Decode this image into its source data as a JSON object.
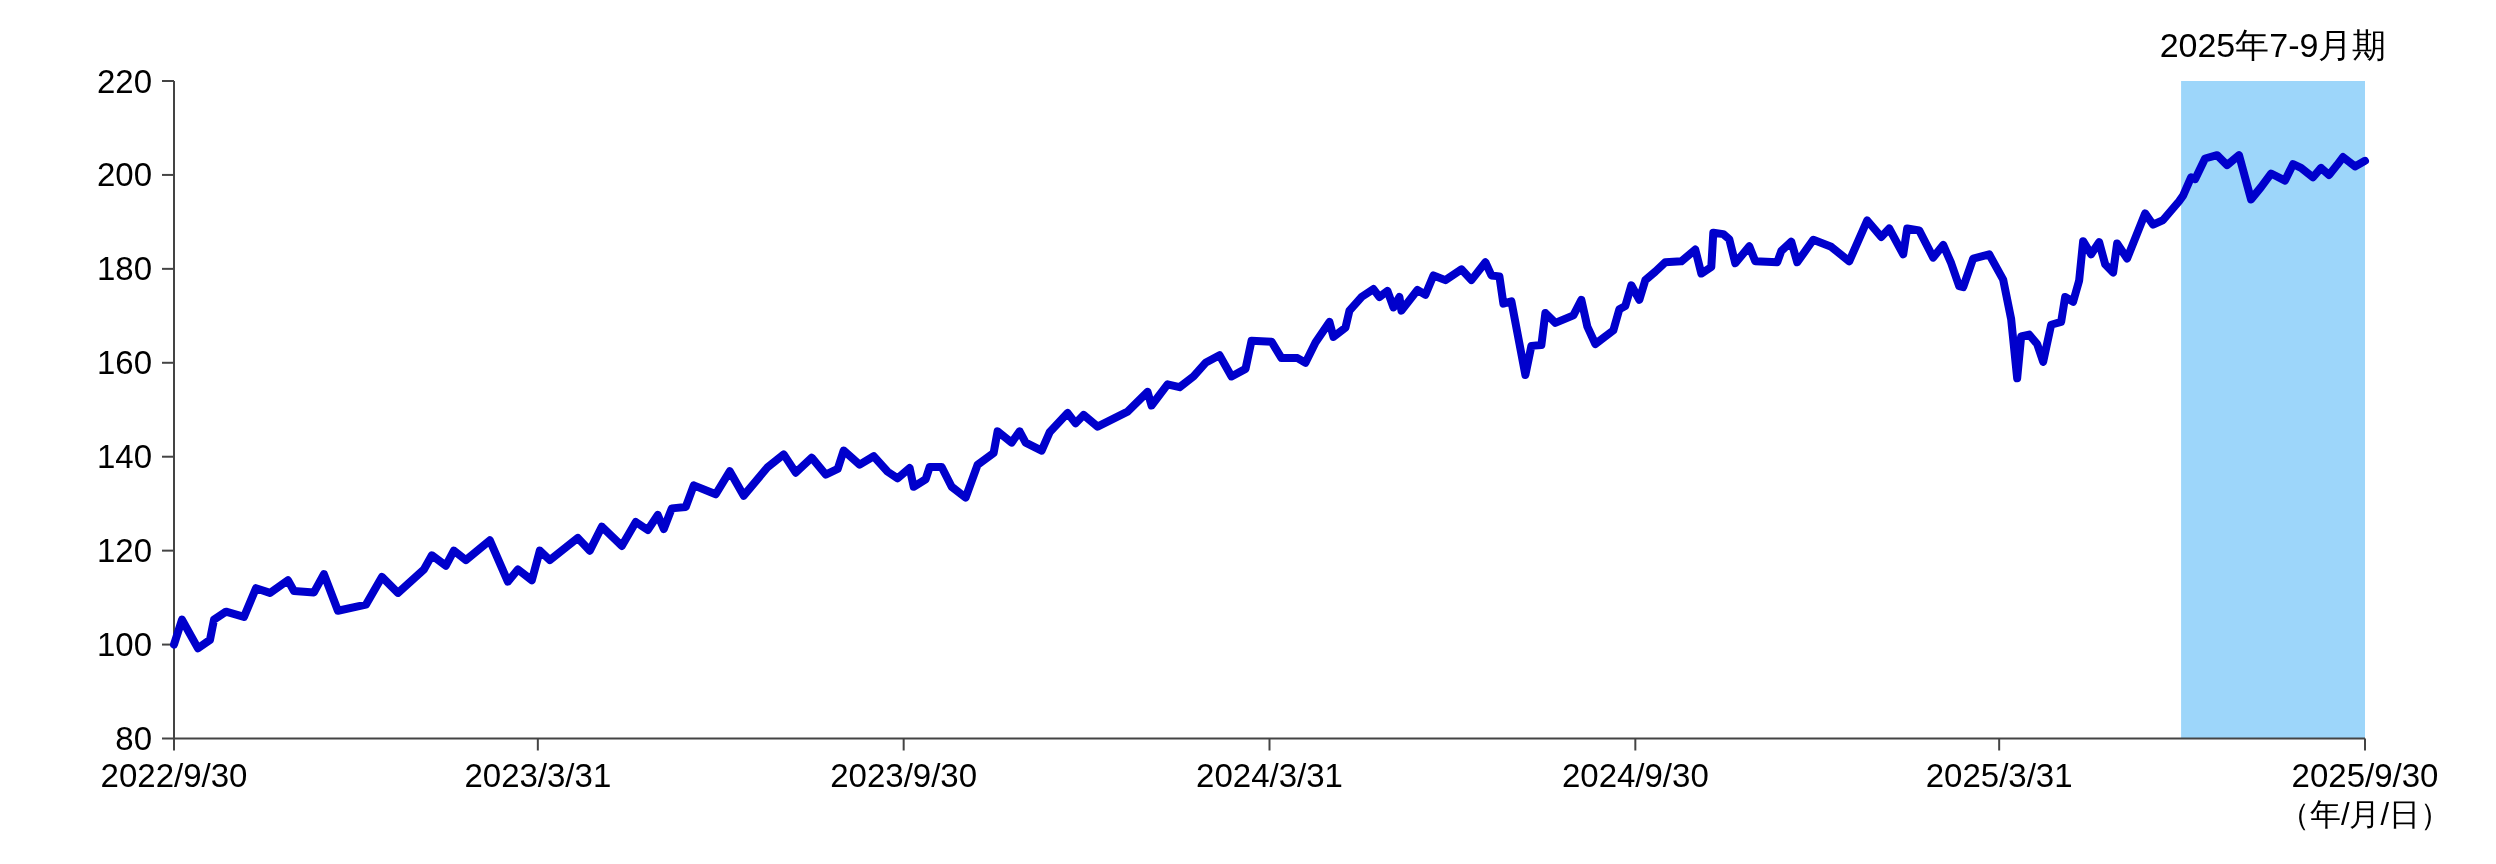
{
  "chart_data": {
    "type": "line",
    "xlabel": "（年/月/日）",
    "x": [
      "2022-09-30",
      "2022-10-04",
      "2022-10-12",
      "2022-10-18",
      "2022-10-20",
      "2022-10-26",
      "2022-11-04",
      "2022-11-10",
      "2022-11-17",
      "2022-11-26",
      "2022-11-29",
      "2022-12-09",
      "2022-12-14",
      "2022-12-21",
      "2023-01-04",
      "2023-01-12",
      "2023-01-20",
      "2023-02-02",
      "2023-02-06",
      "2023-02-13",
      "2023-02-17",
      "2023-02-23",
      "2023-03-07",
      "2023-03-16",
      "2023-03-21",
      "2023-03-28",
      "2023-04-01",
      "2023-04-06",
      "2023-04-20",
      "2023-04-26",
      "2023-05-02",
      "2023-05-12",
      "2023-05-19",
      "2023-05-25",
      "2023-05-30",
      "2023-06-02",
      "2023-06-06",
      "2023-06-13",
      "2023-06-17",
      "2023-06-28",
      "2023-07-05",
      "2023-07-12",
      "2023-07-24",
      "2023-08-01",
      "2023-08-07",
      "2023-08-15",
      "2023-08-22",
      "2023-08-28",
      "2023-08-31",
      "2023-09-08",
      "2023-09-15",
      "2023-09-22",
      "2023-09-27",
      "2023-10-03",
      "2023-10-05",
      "2023-10-11",
      "2023-10-13",
      "2023-10-19",
      "2023-10-24",
      "2023-10-31",
      "2023-11-06",
      "2023-11-14",
      "2023-11-16",
      "2023-11-23",
      "2023-11-27",
      "2023-11-30",
      "2023-12-08",
      "2023-12-12",
      "2023-12-21",
      "2023-12-25",
      "2023-12-29",
      "2024-01-05",
      "2024-01-20",
      "2024-01-30",
      "2024-02-01",
      "2024-02-09",
      "2024-02-15",
      "2024-02-22",
      "2024-02-28",
      "2024-03-06",
      "2024-03-12",
      "2024-03-19",
      "2024-03-22",
      "2024-04-01",
      "2024-04-06",
      "2024-04-14",
      "2024-04-18",
      "2024-04-23",
      "2024-04-30",
      "2024-05-02",
      "2024-05-08",
      "2024-05-10",
      "2024-05-16",
      "2024-05-22",
      "2024-05-25",
      "2024-05-29",
      "2024-06-01",
      "2024-06-04",
      "2024-06-05",
      "2024-06-13",
      "2024-06-17",
      "2024-06-21",
      "2024-06-27",
      "2024-07-05",
      "2024-07-10",
      "2024-07-17",
      "2024-07-20",
      "2024-07-24",
      "2024-07-26",
      "2024-07-30",
      "2024-08-06",
      "2024-08-09",
      "2024-08-14",
      "2024-08-16",
      "2024-08-21",
      "2024-08-30",
      "2024-09-03",
      "2024-09-06",
      "2024-09-10",
      "2024-09-19",
      "2024-09-22",
      "2024-09-25",
      "2024-09-28",
      "2024-10-02",
      "2024-10-05",
      "2024-10-10",
      "2024-10-15",
      "2024-10-23",
      "2024-10-30",
      "2024-11-02",
      "2024-11-07",
      "2024-11-08",
      "2024-11-13",
      "2024-11-16",
      "2024-11-19",
      "2024-11-26",
      "2024-11-29",
      "2024-12-10",
      "2024-12-12",
      "2024-12-17",
      "2024-12-20",
      "2024-12-28",
      "2025-01-06",
      "2025-01-15",
      "2025-01-24",
      "2025-01-31",
      "2025-02-04",
      "2025-02-11",
      "2025-02-13",
      "2025-02-19",
      "2025-02-26",
      "2025-03-03",
      "2025-03-07",
      "2025-03-11",
      "2025-03-13",
      "2025-03-18",
      "2025-03-26",
      "2025-04-02",
      "2025-04-06",
      "2025-04-09",
      "2025-04-11",
      "2025-04-15",
      "2025-04-19",
      "2025-04-22",
      "2025-04-26",
      "2025-05-01",
      "2025-05-03",
      "2025-05-07",
      "2025-05-10",
      "2025-05-12",
      "2025-05-16",
      "2025-05-20",
      "2025-05-23",
      "2025-05-27",
      "2025-05-29",
      "2025-06-03",
      "2025-06-12",
      "2025-06-16",
      "2025-06-21",
      "2025-06-29",
      "2025-07-01",
      "2025-07-05",
      "2025-07-07",
      "2025-07-12",
      "2025-07-18",
      "2025-07-23",
      "2025-07-29",
      "2025-08-04",
      "2025-08-09",
      "2025-08-14",
      "2025-08-21",
      "2025-08-25",
      "2025-08-29",
      "2025-09-04",
      "2025-09-08",
      "2025-09-12",
      "2025-09-16",
      "2025-09-19",
      "2025-09-25",
      "2025-09-30"
    ],
    "series": [
      {
        "color": "#0000cc",
        "values": [
          100,
          105.3,
          99.2,
          101,
          105.3,
          107,
          105.9,
          112,
          111,
          113.7,
          111.4,
          111.1,
          115,
          107.2,
          108.5,
          114.4,
          111,
          116,
          119,
          116.8,
          120,
          118,
          122.2,
          113.4,
          116,
          113.7,
          120,
          118,
          122.7,
          120,
          125.1,
          121,
          126.1,
          124.4,
          127.6,
          124.6,
          129,
          129.3,
          133.9,
          132,
          136.9,
          131.7,
          137.8,
          140.5,
          136.6,
          139.8,
          136.2,
          137.4,
          141.3,
          138.3,
          140.1,
          136.8,
          135.4,
          137.6,
          133.6,
          135.2,
          137.8,
          137.8,
          133.6,
          131.3,
          138.3,
          140.8,
          145.4,
          143,
          145.4,
          143,
          141.3,
          145.2,
          149.3,
          147.1,
          148.9,
          146.4,
          149.6,
          153.8,
          150.9,
          155.4,
          154.8,
          157.1,
          160,
          161.6,
          157.1,
          158.7,
          164.7,
          164.5,
          161,
          161,
          160,
          164.3,
          168.7,
          165.5,
          167.5,
          171.1,
          174,
          175.7,
          174,
          175.3,
          171.8,
          174,
          171.1,
          175.5,
          174.5,
          178.6,
          177.6,
          179.9,
          177.6,
          181.4,
          178.6,
          178.4,
          172.6,
          173.1,
          157.4,
          163.6,
          163.8,
          170.6,
          168.5,
          170.1,
          173.4,
          167.7,
          164,
          166.9,
          171.4,
          172.1,
          176.5,
          173.4,
          177.6,
          179.4,
          181.4,
          181.6,
          184.1,
          179,
          180.4,
          187.7,
          187.4,
          186.3,
          181.2,
          184.8,
          181.6,
          181.4,
          183.8,
          185.8,
          181.4,
          186.2,
          184.7,
          181.6,
          190.3,
          186.8,
          188.6,
          183.1,
          188.6,
          188.2,
          182.4,
          185.1,
          181.2,
          176.3,
          176.1,
          182.2,
          183.1,
          177.7,
          169.3,
          156.7,
          165.6,
          166,
          164,
          160.2,
          168.1,
          168.7,
          174,
          173,
          177.5,
          185.9,
          183.1,
          185.7,
          181,
          179.2,
          185.4,
          182.2,
          191.8,
          189.4,
          190.4,
          194.4,
          195.6,
          199.5,
          199.1,
          203.5,
          204.2,
          202.1,
          204.2,
          194.8,
          197.4,
          200.3,
          198.8,
          202.3,
          201.5,
          199.5,
          201.5,
          200,
          202.1,
          203.8,
          201.8,
          203
        ]
      }
    ],
    "xlim": [
      "2022-09-30",
      "2025-09-30"
    ],
    "xticks": [
      {
        "value": "2022-09-30",
        "label": "2022/9/30"
      },
      {
        "value": "2023-03-31",
        "label": "2023/3/31"
      },
      {
        "value": "2023-09-30",
        "label": "2023/9/30"
      },
      {
        "value": "2024-03-31",
        "label": "2024/3/31"
      },
      {
        "value": "2024-09-30",
        "label": "2024/9/30"
      },
      {
        "value": "2025-03-31",
        "label": "2025/3/31"
      },
      {
        "value": "2025-09-30",
        "label": "2025/9/30"
      }
    ],
    "ylim": [
      80,
      220
    ],
    "yticks": [
      80,
      100,
      120,
      140,
      160,
      180,
      200,
      220
    ],
    "bands": [
      {
        "axis": "x",
        "from": "2025-06-30",
        "to": "2025-09-30",
        "label": "2025年7-9月期",
        "color": "#9dd6fa"
      }
    ]
  }
}
